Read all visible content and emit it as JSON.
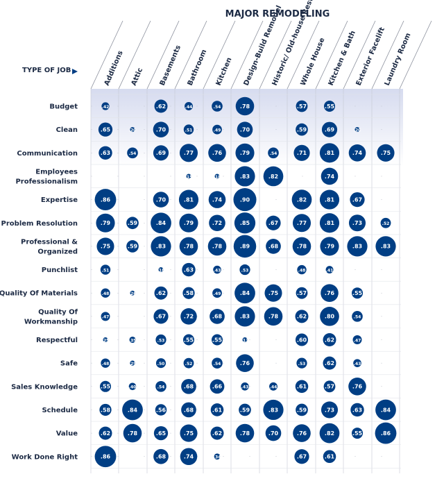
{
  "chart_data": {
    "type": "bubble-matrix",
    "title": "MAJOR REMODELING",
    "row_axis_label": "TYPE OF JOB",
    "columns": [
      "Additions",
      "Attic",
      "Basements",
      "Bathroom",
      "Kitchen",
      "Design-Build Remodel",
      "Historic/ Old-house Restoration",
      "Whole House",
      "Kitchen & Bath",
      "Exterior Facelift",
      "Laundry Room"
    ],
    "rows": [
      "Budget",
      "Clean",
      "Communication",
      "Employees Professionalism",
      "Expertise",
      "Problem Resolution",
      "Professional & Organized",
      "Punchlist",
      "Quality Of Materials",
      "Quality Of Workmanship",
      "Respectful",
      "Safe",
      "Sales Knowledge",
      "Schedule",
      "Value",
      "Work Done Right"
    ],
    "values": [
      [
        ".42",
        null,
        ".62",
        ".44",
        ".54",
        ".78",
        null,
        ".57",
        ".55",
        null,
        null
      ],
      [
        ".65",
        ".20",
        ".70",
        ".51",
        ".49",
        ".70",
        null,
        ".59",
        ".69",
        ".20",
        null
      ],
      [
        ".63",
        ".54",
        ".69",
        ".77",
        ".76",
        ".79",
        ".54",
        ".71",
        ".81",
        ".74",
        ".75"
      ],
      [
        null,
        null,
        null,
        ".15",
        ".18",
        ".83",
        ".82",
        null,
        ".74",
        null,
        null
      ],
      [
        ".86",
        null,
        ".70",
        ".81",
        ".74",
        ".90",
        null,
        ".82",
        ".81",
        ".67",
        null
      ],
      [
        ".79",
        ".59",
        ".84",
        ".79",
        ".72",
        ".85",
        ".67",
        ".77",
        ".81",
        ".73",
        ".52"
      ],
      [
        ".75",
        ".59",
        ".83",
        ".78",
        ".78",
        ".89",
        ".68",
        ".78",
        ".79",
        ".83",
        ".83"
      ],
      [
        ".51",
        null,
        ".18",
        ".63",
        ".43",
        ".53",
        null,
        ".48",
        ".41",
        null,
        null
      ],
      [
        ".48",
        ".26",
        ".62",
        ".58",
        ".49",
        ".84",
        ".75",
        ".57",
        ".76",
        ".55",
        null
      ],
      [
        ".47",
        null,
        ".67",
        ".72",
        ".68",
        ".83",
        ".78",
        ".62",
        ".80",
        ".54",
        null
      ],
      [
        ".25",
        ".35",
        ".53",
        ".55",
        ".55",
        ".13",
        null,
        ".60",
        ".62",
        ".47",
        null
      ],
      [
        ".48",
        ".29",
        ".50",
        ".52",
        ".54",
        ".76",
        null,
        ".53",
        ".62",
        ".43",
        null
      ],
      [
        ".55",
        ".40",
        ".54",
        ".68",
        ".66",
        ".43",
        ".44",
        ".61",
        ".57",
        ".76",
        null
      ],
      [
        ".58",
        ".84",
        ".56",
        ".68",
        ".61",
        ".59",
        ".83",
        ".59",
        ".73",
        ".63",
        ".84"
      ],
      [
        ".62",
        ".78",
        ".65",
        ".75",
        ".62",
        ".78",
        ".70",
        ".76",
        ".82",
        ".55",
        ".86"
      ],
      [
        ".86",
        null,
        ".68",
        ".74",
        ".34",
        null,
        null,
        ".67",
        ".61",
        null,
        null
      ]
    ],
    "colors": {
      "bubble": "#003e84",
      "header_fill": "#dde1f1",
      "grid": "#c4c8d2",
      "text": "#1c2a44"
    }
  }
}
